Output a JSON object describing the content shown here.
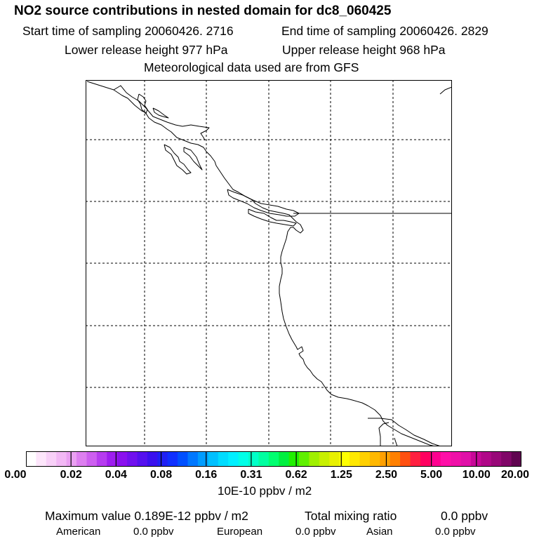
{
  "title": "NO2 source contributions in nested domain for dc8_060425",
  "header": {
    "start_time": "Start time of sampling 20060426.  2716",
    "end_time": "End time of sampling 20060426.  2829",
    "lower_release": "Lower release height  977 hPa",
    "upper_release": "Upper release height  968 hPa",
    "met_data": "Meteorological data used are from GFS"
  },
  "colorbar": {
    "colors": [
      "#ffffff",
      "#fde6fb",
      "#f8d0f8",
      "#f2b8f5",
      "#eaa0f2",
      "#dd7ff0",
      "#cd5ff0",
      "#b63cf0",
      "#9e1df0",
      "#8a10ee",
      "#7010ee",
      "#5510ee",
      "#3a10ee",
      "#2020f4",
      "#1030ff",
      "#0050ff",
      "#0078ff",
      "#009cff",
      "#00c0ff",
      "#00dcff",
      "#00f0ff",
      "#00ffe8",
      "#00ffc8",
      "#00ffa0",
      "#00ff70",
      "#00f040",
      "#20f000",
      "#60f000",
      "#a0f000",
      "#c8f000",
      "#e8f000",
      "#ffff00",
      "#ffe800",
      "#ffd000",
      "#ffb800",
      "#ffa000",
      "#ff8000",
      "#ff5010",
      "#ff2040",
      "#ff0060",
      "#ff0090",
      "#ff10a8",
      "#f010a8",
      "#e010a8",
      "#c80898",
      "#b00888",
      "#980878",
      "#800668",
      "#600450"
    ],
    "tick_labels": [
      "0.00",
      "0.02",
      "0.04",
      "0.08",
      "0.16",
      "0.31",
      "0.62",
      "1.25",
      "2.50",
      "5.00",
      "10.00",
      "20.00"
    ],
    "units": "10E-10 ppbv / m2"
  },
  "stats": {
    "max_value": "Maximum value  0.189E-12 ppbv / m2",
    "total_mixing_label": "Total mixing ratio",
    "total_mixing_value": "0.0 ppbv",
    "american_label": "American",
    "american_value": "0.0 ppbv",
    "european_label": "European",
    "european_value": "0.0 ppbv",
    "asian_label": "Asian",
    "asian_value": "0.0 ppbv"
  }
}
